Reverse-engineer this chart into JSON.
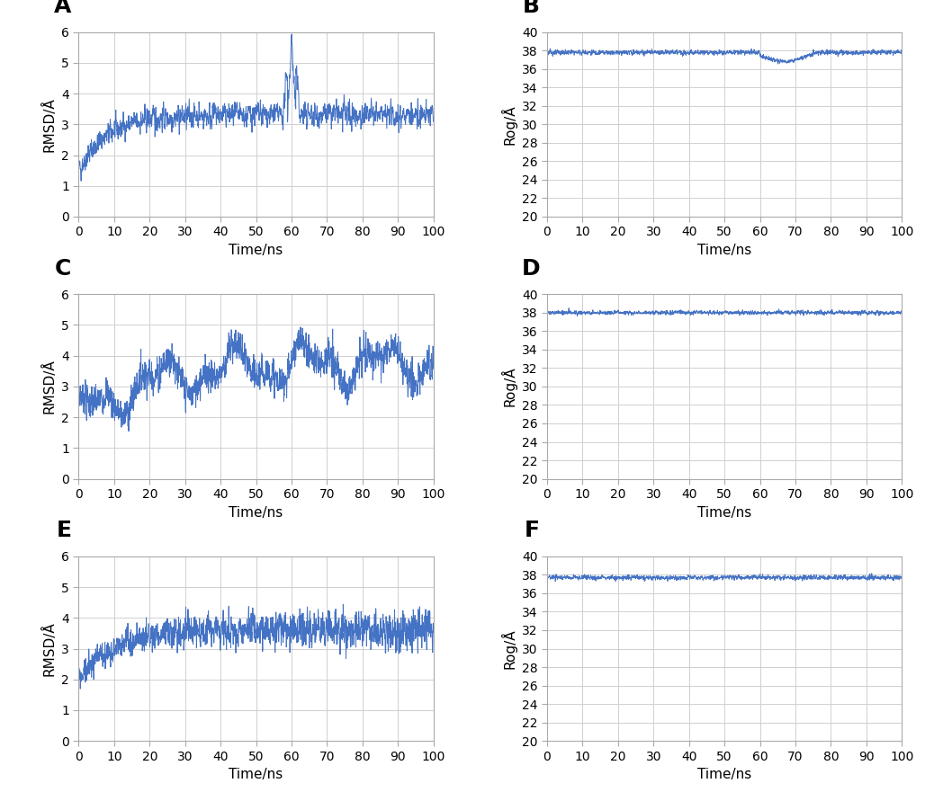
{
  "line_color": "#4472C4",
  "line_width": 0.7,
  "background_color": "#ffffff",
  "grid_color": "#d0d0d0",
  "grid_linewidth": 0.7,
  "panel_labels": [
    "A",
    "B",
    "C",
    "D",
    "E",
    "F"
  ],
  "panel_label_fontsize": 18,
  "panel_label_fontweight": "bold",
  "xlabel": "Time/ns",
  "ylabel_rmsd": "RMSD/Å",
  "ylabel_rg": "Rog/Å",
  "xlabel_fontsize": 11,
  "ylabel_fontsize": 11,
  "tick_fontsize": 10,
  "xlim": [
    0,
    100
  ],
  "rmsd_ylim": [
    0,
    6
  ],
  "rmsd_yticks": [
    0,
    1,
    2,
    3,
    4,
    5,
    6
  ],
  "rg_ylim": [
    20,
    40
  ],
  "rg_yticks": [
    20,
    22,
    24,
    26,
    28,
    30,
    32,
    34,
    36,
    38,
    40
  ],
  "xticks": [
    0,
    10,
    20,
    30,
    40,
    50,
    60,
    70,
    80,
    90,
    100
  ],
  "n_points": 2000
}
